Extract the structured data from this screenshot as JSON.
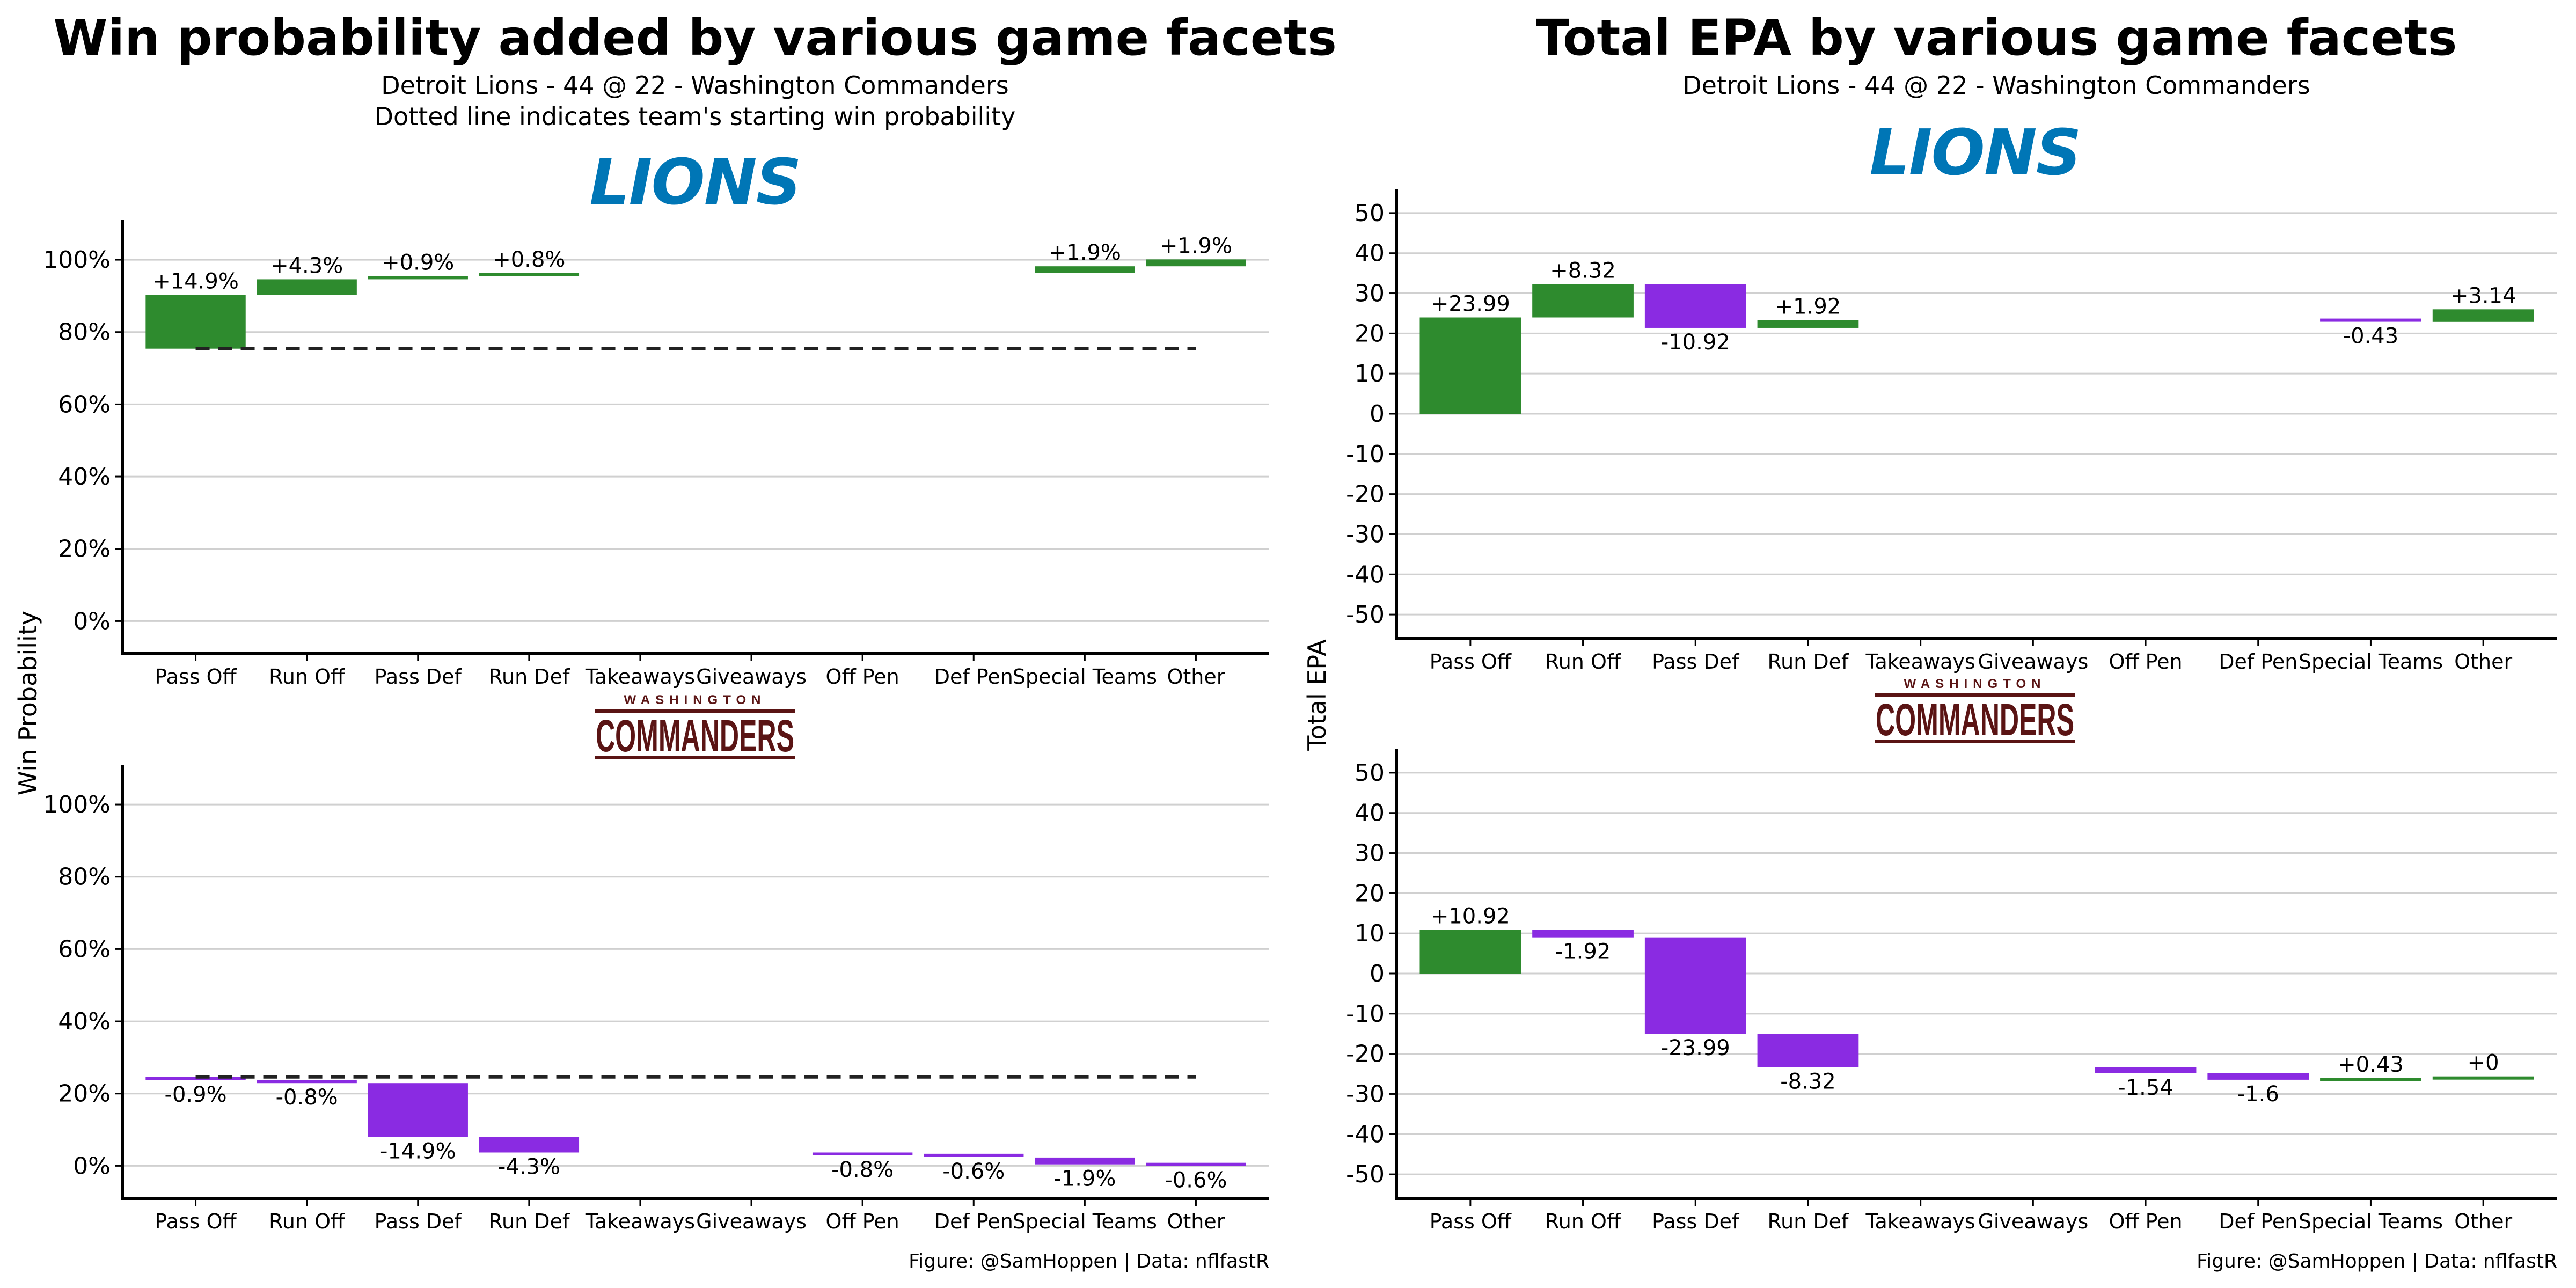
{
  "left": {
    "title": "Win probability added by various game facets",
    "subtitle1": "Detroit Lions - 44 @ 22 - Washington Commanders",
    "subtitle2": "Dotted line indicates team's starting win probability",
    "ylabel": "Win Probability"
  },
  "right": {
    "title": "Total EPA by various game facets",
    "subtitle1": "Detroit Lions - 44 @ 22 - Washington Commanders",
    "ylabel": "Total EPA"
  },
  "caption": "Figure: @SamHoppen | Data: nflfastR",
  "logos": {
    "lions": "LIONS",
    "commanders_top": "WASHINGTON",
    "commanders_word": "COMMANDERS"
  },
  "colors": {
    "positive": "#2E8B2E",
    "negative": "#8A2BE2",
    "lions_blue": "#0076B6",
    "commanders_burgundy": "#5A1414"
  },
  "chart_data": [
    {
      "id": "lions_wp",
      "type": "bar",
      "subtype": "waterfall",
      "team": "Detroit Lions",
      "categories": [
        "Pass Off",
        "Run Off",
        "Pass Def",
        "Run Def",
        "Takeaways",
        "Giveaways",
        "Off Pen",
        "Def Pen",
        "Special Teams",
        "Other"
      ],
      "values": [
        14.9,
        4.3,
        0.9,
        0.8,
        0,
        0,
        0,
        0,
        1.9,
        1.9
      ],
      "labels": [
        "+14.9%",
        "+4.3%",
        "+0.9%",
        "+0.8%",
        "",
        "",
        "",
        "",
        "+1.9%",
        "+1.9%"
      ],
      "start": 75.4,
      "baseline": 75.4,
      "yticks": [
        0,
        20,
        40,
        60,
        80,
        100
      ],
      "ytick_labels": [
        "0%",
        "20%",
        "40%",
        "60%",
        "80%",
        "100%"
      ],
      "ylim": [
        -9,
        111
      ],
      "grid": true
    },
    {
      "id": "commanders_wp",
      "type": "bar",
      "subtype": "waterfall",
      "team": "Washington Commanders",
      "categories": [
        "Pass Off",
        "Run Off",
        "Pass Def",
        "Run Def",
        "Takeaways",
        "Giveaways",
        "Off Pen",
        "Def Pen",
        "Special Teams",
        "Other"
      ],
      "values": [
        -0.9,
        -0.8,
        -14.9,
        -4.3,
        0,
        0,
        -0.8,
        -0.6,
        -1.9,
        -0.6
      ],
      "labels": [
        "-0.9%",
        "-0.8%",
        "-14.9%",
        "-4.3%",
        "",
        "",
        "-0.8%",
        "-0.6%",
        "-1.9%",
        "-0.6%"
      ],
      "start": 24.6,
      "baseline": 24.6,
      "display_starts": [
        24.6,
        23.7,
        22.9,
        8.0,
        3.7,
        3.7,
        3.7,
        2.9,
        2.3,
        0.4
      ],
      "yticks": [
        0,
        20,
        40,
        60,
        80,
        100
      ],
      "ytick_labels": [
        "0%",
        "20%",
        "40%",
        "60%",
        "80%",
        "100%"
      ],
      "ylim": [
        -9,
        111
      ],
      "grid": true
    },
    {
      "id": "lions_epa",
      "type": "bar",
      "subtype": "waterfall",
      "team": "Detroit Lions",
      "categories": [
        "Pass Off",
        "Run Off",
        "Pass Def",
        "Run Def",
        "Takeaways",
        "Giveaways",
        "Off Pen",
        "Def Pen",
        "Special Teams",
        "Other"
      ],
      "values": [
        23.99,
        8.32,
        -10.92,
        1.92,
        0,
        0,
        0,
        0,
        -0.43,
        3.14
      ],
      "labels": [
        "+23.99",
        "+8.32",
        "-10.92",
        "+1.92",
        "",
        "",
        "",
        "",
        "-0.43",
        "+3.14"
      ],
      "start": 0,
      "yticks": [
        -50,
        -40,
        -30,
        -20,
        -10,
        0,
        10,
        20,
        30,
        40,
        50
      ],
      "ytick_labels": [
        "-50",
        "-40",
        "-30",
        "-20",
        "-10",
        "0",
        "10",
        "20",
        "30",
        "40",
        "50"
      ],
      "ylim": [
        -56,
        56
      ],
      "grid": true
    },
    {
      "id": "commanders_epa",
      "type": "bar",
      "subtype": "waterfall",
      "team": "Washington Commanders",
      "categories": [
        "Pass Off",
        "Run Off",
        "Pass Def",
        "Run Def",
        "Takeaways",
        "Giveaways",
        "Off Pen",
        "Def Pen",
        "Special Teams",
        "Other"
      ],
      "values": [
        10.92,
        -1.92,
        -23.99,
        -8.32,
        0,
        0,
        -1.54,
        -1.6,
        0.43,
        0
      ],
      "labels": [
        "+10.92",
        "-1.92",
        "-23.99",
        "-8.32",
        "",
        "",
        "-1.54",
        "-1.6",
        "+0.43",
        "+0"
      ],
      "start": 0,
      "yticks": [
        -50,
        -40,
        -30,
        -20,
        -10,
        0,
        10,
        20,
        30,
        40,
        50
      ],
      "ytick_labels": [
        "-50",
        "-40",
        "-30",
        "-20",
        "-10",
        "0",
        "10",
        "20",
        "30",
        "40",
        "50"
      ],
      "ylim": [
        -56,
        56
      ],
      "grid": true
    }
  ]
}
